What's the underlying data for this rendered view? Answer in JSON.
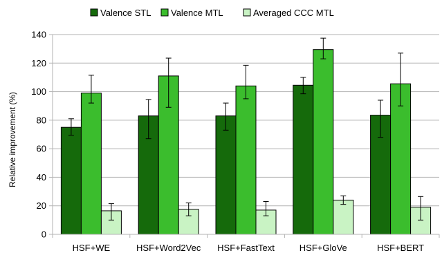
{
  "chart_data": {
    "type": "bar",
    "title": "",
    "xlabel": "",
    "ylabel": "Relative improvement (%)",
    "ylim": [
      0,
      140
    ],
    "yticks": [
      0,
      20,
      40,
      60,
      80,
      100,
      120,
      140
    ],
    "grid": "horizontal",
    "legend_position": "top",
    "categories": [
      "HSF+WE",
      "HSF+Word2Vec",
      "HSF+FastText",
      "HSF+GloVe",
      "HSF+BERT"
    ],
    "series": [
      {
        "name": "Valence STL",
        "color": "#156a0b",
        "values": [
          75,
          83,
          83,
          104.5,
          83.5
        ],
        "error_low": [
          69.5,
          67,
          73,
          98.5,
          68
        ],
        "error_high": [
          81,
          94.5,
          92,
          110,
          94
        ]
      },
      {
        "name": "Valence MTL",
        "color": "#3bbd2d",
        "values": [
          99,
          111,
          104,
          129.5,
          105.5
        ],
        "error_low": [
          92,
          89,
          95,
          123,
          90
        ],
        "error_high": [
          111.5,
          123.5,
          118.5,
          137.5,
          127
        ]
      },
      {
        "name": "Averaged CCC MTL",
        "color": "#c9f3c4",
        "values": [
          16.5,
          17.5,
          17,
          24,
          19
        ],
        "error_low": [
          10,
          13,
          13,
          21,
          10
        ],
        "error_high": [
          21.5,
          22,
          23,
          27,
          26.5
        ]
      }
    ]
  }
}
